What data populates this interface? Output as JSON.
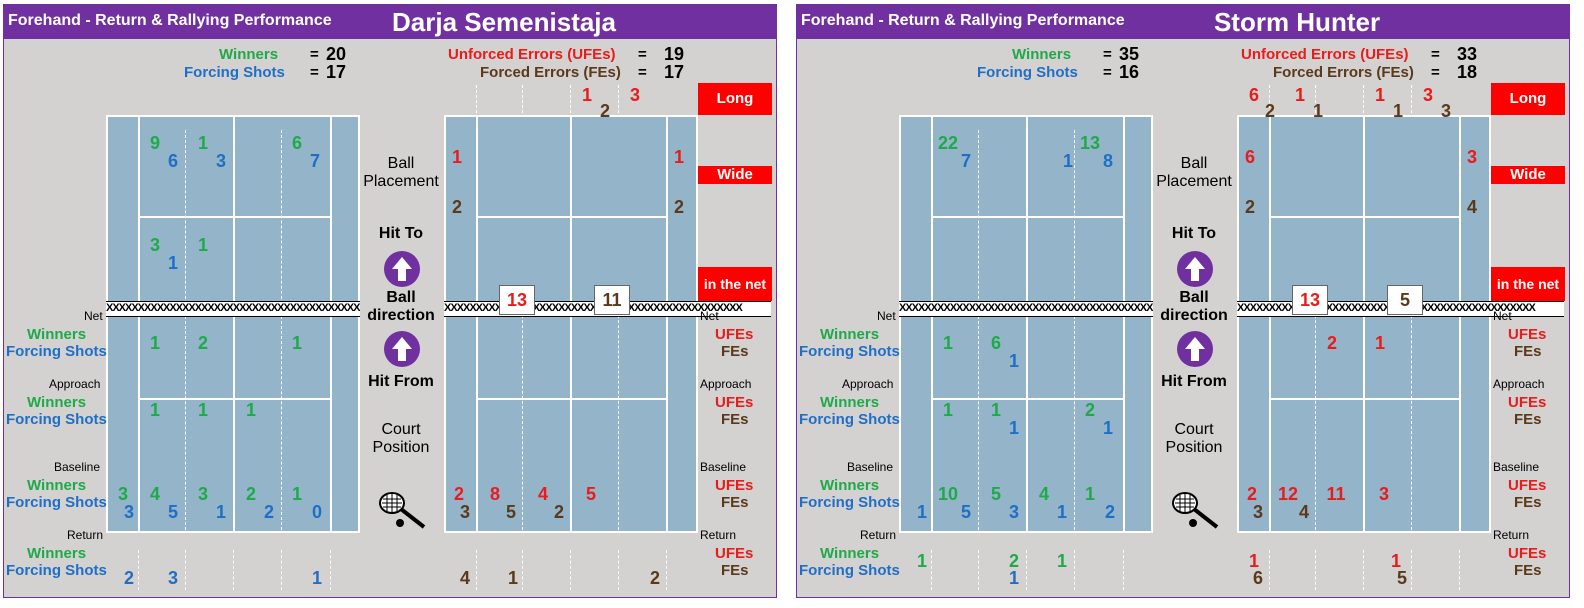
{
  "colors": {
    "purple": "#7030a0",
    "winners": "#1faa4a",
    "forcing": "#1f6fc6",
    "ufe": "#e81c1c",
    "fe": "#5a3a1a",
    "court": "#94b4c9"
  },
  "common": {
    "title": "Forehand - Return & Rallying Performance",
    "winners": "Winners",
    "forcing": "Forcing Shots",
    "ufes_long": "Unforced Errors (UFEs)",
    "fes_long": "Forced Errors (FEs)",
    "eq": "=",
    "ufes": "UFEs",
    "fes": "FEs",
    "net": "Net",
    "approach": "Approach",
    "baseline": "Baseline",
    "return": "Return",
    "long": "Long",
    "wide": "Wide",
    "in_net": "in the net",
    "ball_placement": "Ball Placement",
    "hit_to": "Hit To",
    "ball_direction": "Ball direction",
    "hit_from": "Hit From",
    "court_position": "Court Position",
    "net_pattern": "XXXXXXXXXXXXXXXXXXXXXXXXXXXXXXXXXXXXXXXXXXXXXXX",
    "icons": [
      "arrow-up-icon",
      "tennis-racket-icon"
    ]
  },
  "players": [
    {
      "name": "Darja Semenistaja",
      "winners": "20",
      "forcing": "17",
      "ufes": "19",
      "fes": "17",
      "net_box_left": "13",
      "net_box_right": "11",
      "long_row1": [
        "",
        "",
        "1",
        "3",
        ""
      ],
      "long_row2": [
        "",
        "",
        "2",
        "",
        ""
      ],
      "wide_ufe_left": "1",
      "wide_ufe_right": "1",
      "wide_fe_left": "2",
      "wide_fe_right": "2",
      "deep_w": [
        "9",
        "1",
        "",
        "6"
      ],
      "deep_f": [
        "6",
        "3",
        "",
        "7"
      ],
      "mid_w": [
        "3",
        "1",
        "",
        ""
      ],
      "mid_f": [
        "1",
        "",
        "",
        ""
      ],
      "net_w": [
        "1",
        "2",
        "",
        "1"
      ],
      "net_f": [
        "",
        "",
        "",
        ""
      ],
      "app_w": [
        "1",
        "1",
        "1",
        ""
      ],
      "app_f": [
        "",
        "",
        "",
        ""
      ],
      "base_w": [
        "3",
        "4",
        "3",
        "2",
        "1"
      ],
      "base_f": [
        "3",
        "5",
        "1",
        "2",
        "0"
      ],
      "ret_w": [
        "",
        "",
        "",
        "",
        ""
      ],
      "ret_f": [
        "2",
        "3",
        "",
        "",
        "1"
      ],
      "r_net_u": [
        "",
        "",
        "",
        ""
      ],
      "r_net_f": [
        "",
        "",
        "",
        ""
      ],
      "r_app_u": [
        "",
        "",
        "",
        ""
      ],
      "r_app_f": [
        "",
        "",
        "",
        ""
      ],
      "r_base_u": [
        "2",
        "8",
        "4",
        "5",
        ""
      ],
      "r_base_f": [
        "3",
        "5",
        "2",
        "",
        ""
      ],
      "r_ret_u": [
        "",
        "",
        "",
        "",
        ""
      ],
      "r_ret_f": [
        "4",
        "1",
        "",
        "",
        "2"
      ]
    },
    {
      "name": "Storm Hunter",
      "winners": "35",
      "forcing": "16",
      "ufes": "33",
      "fes": "18",
      "net_box_left": "13",
      "net_box_right": "5",
      "long_row1": [
        "6",
        "1",
        "1",
        "3",
        ""
      ],
      "long_row2": [
        "2",
        "1",
        "1",
        "3",
        ""
      ],
      "wide_ufe_left": "6",
      "wide_ufe_right": "3",
      "wide_fe_left": "2",
      "wide_fe_right": "4",
      "deep_w": [
        "22",
        "",
        "",
        "13"
      ],
      "deep_f": [
        "7",
        "",
        "1",
        "8"
      ],
      "mid_w": [
        "",
        "",
        "",
        ""
      ],
      "mid_f": [
        "",
        "",
        "",
        ""
      ],
      "net_w": [
        "1",
        "6",
        "",
        ""
      ],
      "net_f": [
        "",
        "1",
        "",
        ""
      ],
      "app_w": [
        "1",
        "1",
        "",
        "2"
      ],
      "app_f": [
        "",
        "1",
        "",
        "1"
      ],
      "base_w": [
        "",
        "10",
        "5",
        "4",
        "1"
      ],
      "base_f": [
        "1",
        "5",
        "3",
        "1",
        "2"
      ],
      "ret_w": [
        "1",
        "",
        "2",
        "1",
        ""
      ],
      "ret_f": [
        "",
        "",
        "1",
        "",
        ""
      ],
      "r_net_u": [
        "",
        "2",
        "1",
        ""
      ],
      "r_net_f": [
        "",
        "",
        "",
        ""
      ],
      "r_app_u": [
        "",
        "",
        "",
        ""
      ],
      "r_app_f": [
        "",
        "",
        "",
        ""
      ],
      "r_base_u": [
        "2",
        "12",
        "11",
        "3",
        ""
      ],
      "r_base_f": [
        "3",
        "4",
        "",
        "",
        ""
      ],
      "r_ret_u": [
        "1",
        "",
        "",
        "1",
        ""
      ],
      "r_ret_f": [
        "6",
        "",
        "",
        "5",
        ""
      ]
    }
  ],
  "chart_data": {
    "type": "table",
    "title": "Forehand - Return & Rallying Performance",
    "players": [
      {
        "name": "Darja Semenistaja",
        "winners": 20,
        "forcing_shots": 17,
        "ufes": 19,
        "fes": 17,
        "net_errors": [
          13,
          11
        ]
      },
      {
        "name": "Storm Hunter",
        "winners": 35,
        "forcing_shots": 16,
        "ufes": 33,
        "fes": 18,
        "net_errors": [
          13,
          5
        ]
      }
    ]
  }
}
